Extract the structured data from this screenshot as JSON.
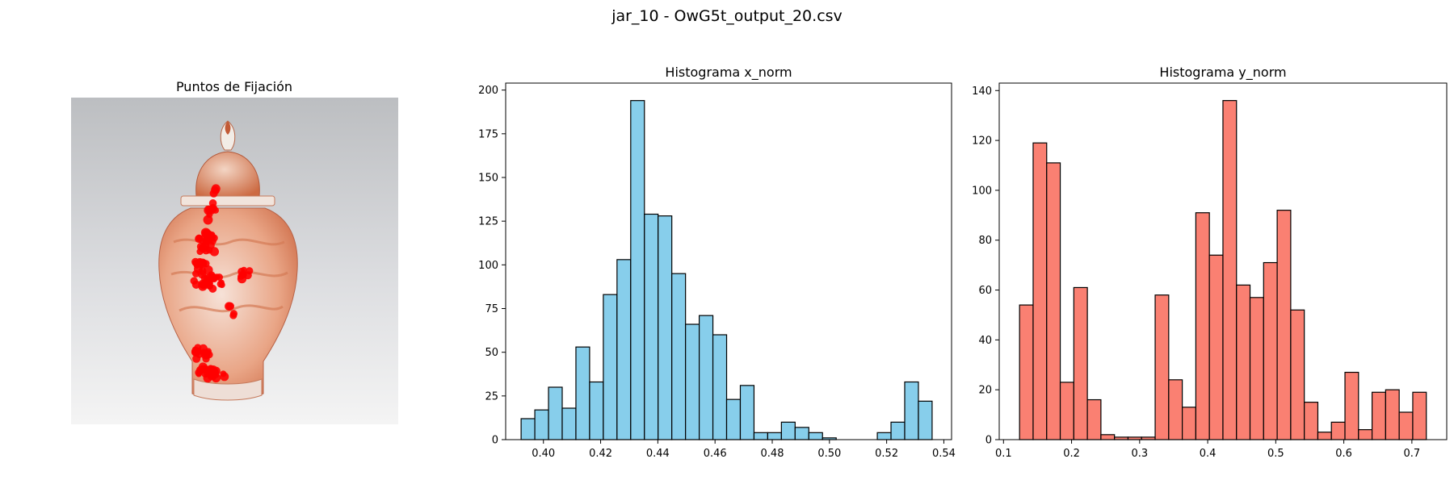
{
  "figure": {
    "suptitle": "jar_10 - OwG5t_output_20.csv"
  },
  "panels": {
    "fixation": {
      "title": "Puntos de Fijación"
    }
  },
  "colors": {
    "hist_x": "#87ceeb",
    "hist_y": "#fa8072",
    "edge": "#000000",
    "fixation": "#ff0000"
  },
  "chart_data": [
    {
      "type": "bar",
      "title": "Histograma x_norm",
      "xlabel": "",
      "ylabel": "",
      "bins": {
        "start": 0.3922,
        "width": 0.00479,
        "count": 30
      },
      "values": [
        12,
        17,
        30,
        18,
        53,
        33,
        83,
        103,
        194,
        129,
        128,
        95,
        66,
        71,
        60,
        23,
        31,
        4,
        4,
        10,
        7,
        4,
        1,
        0,
        0,
        0,
        4,
        10,
        33,
        22
      ],
      "xlim": [
        0.3868,
        0.5427
      ],
      "ylim": [
        0,
        204
      ],
      "xticks": [
        0.4,
        0.42,
        0.44,
        0.46,
        0.48,
        0.5,
        0.52,
        0.54
      ],
      "xtick_labels": [
        "0.40",
        "0.42",
        "0.44",
        "0.46",
        "0.48",
        "0.50",
        "0.52",
        "0.54"
      ],
      "yticks": [
        0,
        25,
        50,
        75,
        100,
        125,
        150,
        175,
        200
      ],
      "ytick_labels": [
        "0",
        "25",
        "50",
        "75",
        "100",
        "125",
        "150",
        "175",
        "200"
      ],
      "grid": false
    },
    {
      "type": "bar",
      "title": "Histograma y_norm",
      "xlabel": "",
      "ylabel": "",
      "bins": {
        "start": 0.1236,
        "width": 0.01992,
        "count": 30
      },
      "values": [
        54,
        119,
        111,
        23,
        61,
        16,
        2,
        1,
        1,
        1,
        58,
        24,
        13,
        91,
        74,
        136,
        62,
        57,
        71,
        92,
        52,
        15,
        3,
        7,
        27,
        4,
        19,
        20,
        11,
        19
      ],
      "xlim": [
        0.0937,
        0.7512
      ],
      "ylim": [
        0,
        143
      ],
      "xticks": [
        0.1,
        0.2,
        0.3,
        0.4,
        0.5,
        0.6,
        0.7
      ],
      "xtick_labels": [
        "0.1",
        "0.2",
        "0.3",
        "0.4",
        "0.5",
        "0.6",
        "0.7"
      ],
      "yticks": [
        0,
        20,
        40,
        60,
        80,
        100,
        120,
        140
      ],
      "ytick_labels": [
        "0",
        "20",
        "40",
        "60",
        "80",
        "100",
        "120",
        "140"
      ],
      "grid": false
    }
  ]
}
